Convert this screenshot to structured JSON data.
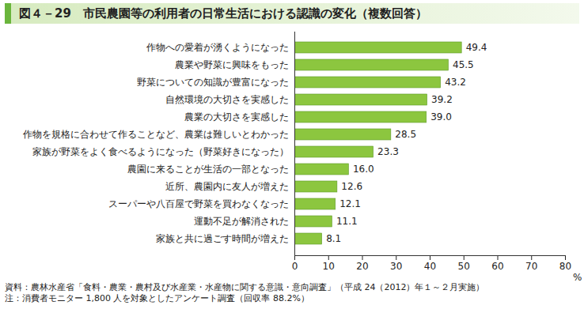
{
  "chart_data": {
    "type": "bar",
    "orientation": "horizontal",
    "title": "図４－29　市民農園等の利用者の日常生活における認識の変化（複数回答）",
    "categories": [
      "作物への愛着が湧くようになった",
      "農業や野菜に興味をもった",
      "野菜についての知識が豊富になった",
      "自然環境の大切さを実感した",
      "農業の大切さを実感した",
      "作物を規格に合わせて作ることなど、農業は難しいとわかった",
      "家族が野菜をよく食べるようになった（野菜好きになった）",
      "農園に来ることが生活の一部となった",
      "近所、農園内に友人が増えた",
      "スーパーや八百屋で野菜を買わなくなった",
      "運動不足が解消された",
      "家族と共に過ごす時間が増えた"
    ],
    "values": [
      49.4,
      45.5,
      43.2,
      39.2,
      39.0,
      28.5,
      23.3,
      16.0,
      12.6,
      12.1,
      11.1,
      8.1
    ],
    "value_labels": [
      "49.4",
      "45.5",
      "43.2",
      "39.2",
      "39.0",
      "28.5",
      "23.3",
      "16.0",
      "12.6",
      "12.1",
      "11.1",
      "8.1"
    ],
    "color": "#8cc63f",
    "x_label": "%",
    "xlim": [
      0,
      80
    ],
    "xticks": [
      0,
      10,
      20,
      30,
      40,
      50,
      60,
      70,
      80
    ],
    "data_labels": true,
    "grid": false,
    "notes": [
      "資料：農林水産省「食料・農業・農村及び水産業・水産物に関する意識・意向調査」（平成 24（2012）年１～２月実施）",
      "注：消費者モニター 1,800 人を対象としたアンケート調査（回収率 88.2%）"
    ]
  }
}
